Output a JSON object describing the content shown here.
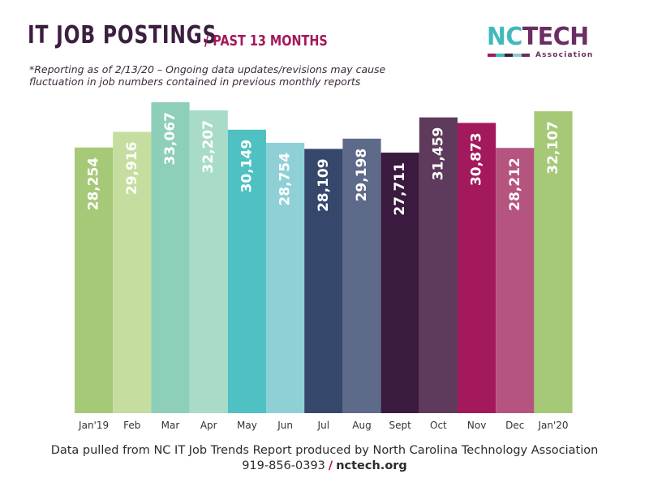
{
  "header": {
    "title": "IT JOB POSTINGS",
    "subtitle": "/ PAST 13 MONTHS",
    "note": "*Reporting as of 2/13/20 – Ongoing data updates/revisions may cause fluctuation in job numbers contained in previous monthly reports"
  },
  "logo": {
    "nc": "NC",
    "tech": "TECH",
    "tagline": "Association",
    "stripe_colors": [
      "#a3195b",
      "#41b9ba",
      "#3b1f3f",
      "#8fc7d0",
      "#6b2d63"
    ]
  },
  "chart_data": {
    "type": "bar",
    "categories": [
      "Jan'19",
      "Feb",
      "Mar",
      "Apr",
      "May",
      "Jun",
      "Jul",
      "Aug",
      "Sept",
      "Oct",
      "Nov",
      "Dec",
      "Jan'20"
    ],
    "values": [
      28254,
      29916,
      33067,
      32207,
      30149,
      28754,
      28109,
      29198,
      27711,
      31459,
      30873,
      28212,
      32107
    ],
    "value_labels": [
      "28,254",
      "29,916",
      "33,067",
      "32,207",
      "30,149",
      "28,754",
      "28,109",
      "29,198",
      "27,711",
      "31,459",
      "30,873",
      "28,212",
      "32,107"
    ],
    "bar_colors": [
      "#a5c977",
      "#c5dd9e",
      "#8dcfb8",
      "#a8dcc9",
      "#4fc1c2",
      "#8ed0d6",
      "#35486b",
      "#5e6a89",
      "#3a1a3f",
      "#5e3b5d",
      "#a3195b",
      "#b5547f",
      "#a5c977"
    ],
    "title": "",
    "xlabel": "",
    "ylabel": "",
    "ylim": [
      0,
      33500
    ],
    "grid": false,
    "legend": "none",
    "data_labels": "inside-top-vertical"
  },
  "footer": {
    "source": "Data pulled from NC IT Job Trends Report produced by North Carolina Technology Association",
    "phone": "919-856-0393",
    "separator": "/",
    "website": "nctech.org"
  }
}
